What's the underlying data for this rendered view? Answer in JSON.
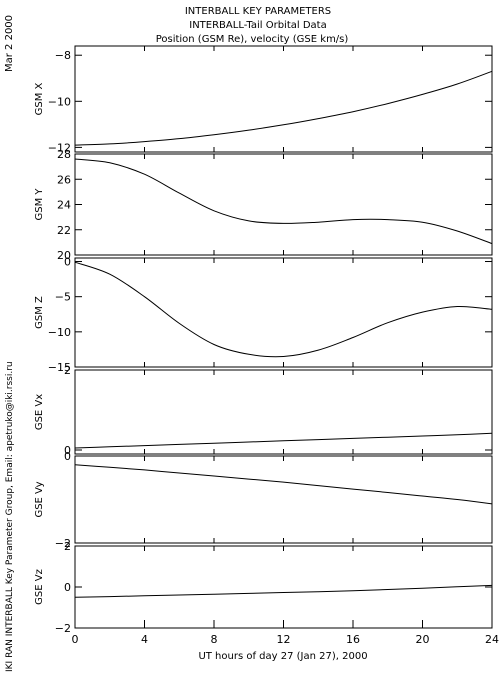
{
  "header": {
    "title": "INTERBALL KEY PARAMETERS",
    "subtitle": "INTERBALL-Tail Orbital Data",
    "subsubtitle": "Position (GSM Re), velocity (GSE km/s)",
    "date_stamp": "Mar  2 2000",
    "credit": "IKI RAN INTERBALL Key Parameter Group, Email: apetruko@iki.rssi.ru"
  },
  "chart_data": {
    "type": "line",
    "xlabel": "UT hours of day  27 (Jan 27), 2000",
    "xlim": [
      0,
      24
    ],
    "xticks": [
      0,
      4,
      8,
      12,
      16,
      20,
      24
    ],
    "x": [
      0,
      2,
      4,
      6,
      8,
      10,
      12,
      14,
      16,
      18,
      20,
      22,
      24
    ],
    "panels": [
      {
        "ylabel": "GSM X",
        "ylim": [
          -12.2,
          -7.6
        ],
        "yticks": [
          -12,
          -10,
          -8
        ],
        "values": [
          -11.9,
          -11.85,
          -11.75,
          -11.62,
          -11.45,
          -11.25,
          -11.02,
          -10.75,
          -10.45,
          -10.1,
          -9.7,
          -9.25,
          -8.7
        ]
      },
      {
        "ylabel": "GSM Y",
        "ylim": [
          20,
          28
        ],
        "yticks": [
          20,
          22,
          24,
          26,
          28
        ],
        "values": [
          27.6,
          27.3,
          26.4,
          24.9,
          23.5,
          22.7,
          22.5,
          22.6,
          22.8,
          22.8,
          22.6,
          21.9,
          20.9
        ]
      },
      {
        "ylabel": "GSM Z",
        "ylim": [
          -15,
          0.5
        ],
        "yticks": [
          -15,
          -10,
          -5,
          0
        ],
        "values": [
          -0.1,
          -1.8,
          -5,
          -8.8,
          -11.8,
          -13.2,
          -13.5,
          -12.6,
          -10.8,
          -8.7,
          -7.2,
          -6.4,
          -6.8
        ]
      },
      {
        "ylabel": "GSE Vx",
        "ylim": [
          -0.1,
          2
        ],
        "yticks": [
          0,
          2
        ],
        "values": [
          0.05,
          0.08,
          0.11,
          0.14,
          0.17,
          0.2,
          0.23,
          0.26,
          0.29,
          0.32,
          0.35,
          0.38,
          0.42
        ]
      },
      {
        "ylabel": "GSE Vy",
        "ylim": [
          -2,
          0
        ],
        "yticks": [
          -2,
          0
        ],
        "values": [
          -0.2,
          -0.26,
          -0.32,
          -0.39,
          -0.46,
          -0.53,
          -0.6,
          -0.68,
          -0.76,
          -0.84,
          -0.92,
          -1.0,
          -1.1
        ]
      },
      {
        "ylabel": "GSE Vz",
        "ylim": [
          -2,
          2
        ],
        "yticks": [
          -2,
          0,
          2
        ],
        "values": [
          -0.5,
          -0.47,
          -0.43,
          -0.39,
          -0.35,
          -0.31,
          -0.27,
          -0.23,
          -0.18,
          -0.12,
          -0.06,
          0.01,
          0.08
        ]
      }
    ]
  }
}
